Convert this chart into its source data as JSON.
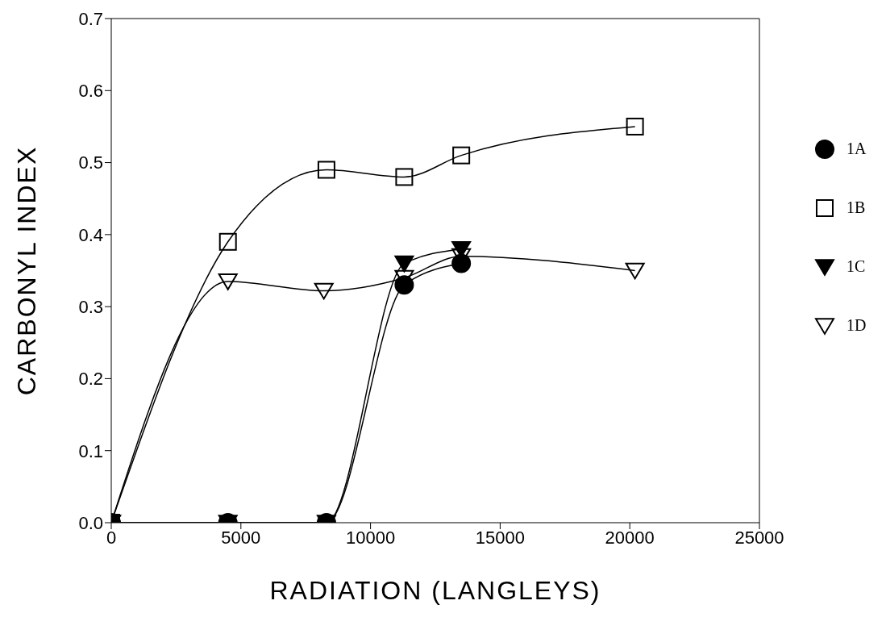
{
  "chart_data": {
    "type": "line",
    "xlabel": "RADIATION (LANGLEYS)",
    "ylabel": "CARBONYL INDEX",
    "xlim": [
      0,
      25000
    ],
    "xticks": [
      0,
      5000,
      10000,
      15000,
      20000,
      25000
    ],
    "ylim": [
      0,
      0.7
    ],
    "yticks": [
      {
        "value": 0,
        "label": "0.0"
      },
      0.1,
      0.2,
      0.3,
      0.4,
      0.5,
      0.6,
      0.7
    ],
    "grid": false,
    "legend": "right",
    "series": [
      {
        "name": "1A",
        "color": "#000000",
        "marker": "circle",
        "x": [
          0,
          4500,
          8300,
          11300,
          13500
        ],
        "values": [
          0,
          0,
          0,
          0.33,
          0.36
        ]
      },
      {
        "name": "1B",
        "color": "#000000",
        "marker": "square",
        "x": [
          0,
          4500,
          8300,
          11300,
          13500,
          20200
        ],
        "values": [
          0,
          0.39,
          0.49,
          0.48,
          0.51,
          0.55
        ]
      },
      {
        "name": "1C",
        "color": "#000000",
        "marker": "triangle",
        "x": [
          0,
          4500,
          8300,
          11300,
          13500
        ],
        "values": [
          0,
          0,
          0,
          0.36,
          0.38
        ]
      },
      {
        "name": "1D",
        "color": "#000000",
        "marker": "triangle",
        "x": [
          0,
          4500,
          8200,
          11300,
          13500,
          20200
        ],
        "values": [
          0,
          0.335,
          0.322,
          0.34,
          0.37,
          0.35
        ]
      }
    ]
  }
}
